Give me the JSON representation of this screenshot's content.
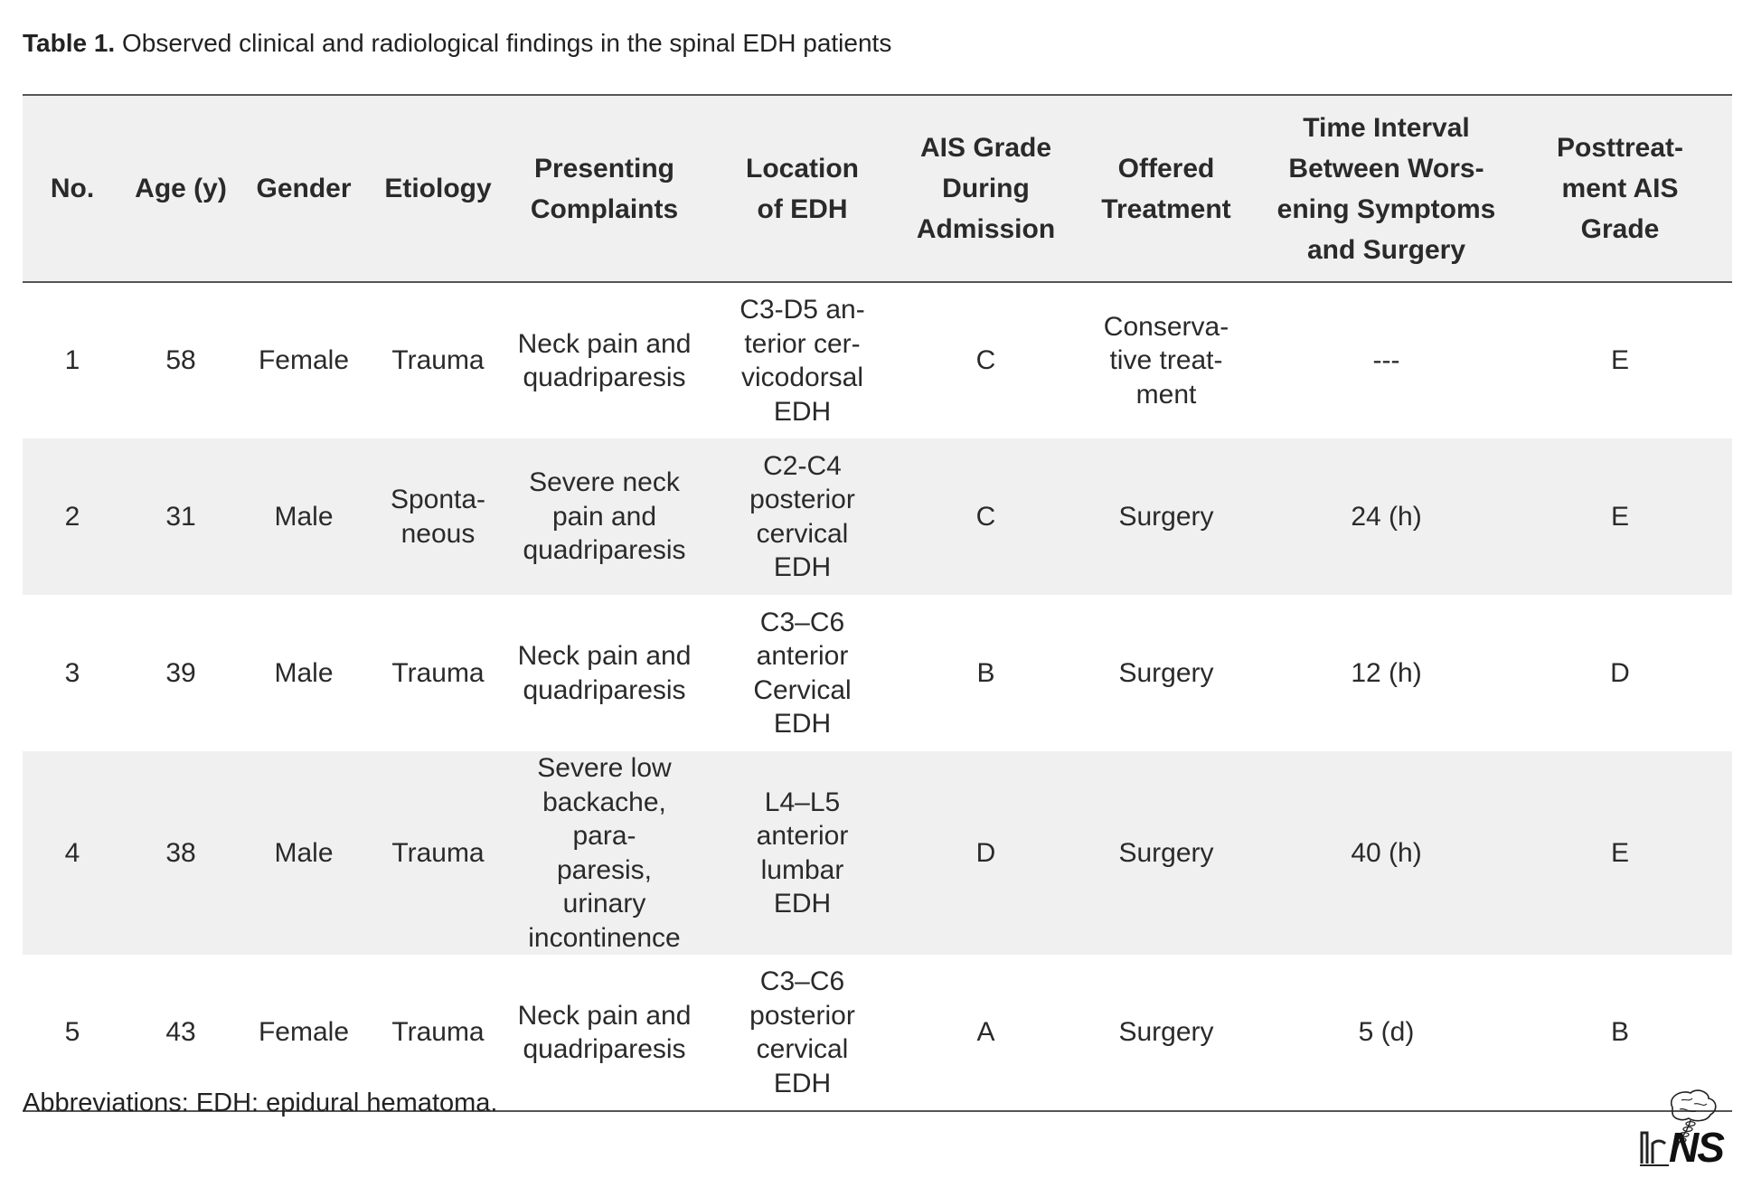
{
  "caption": {
    "label": "Table 1.",
    "text": " Observed clinical and radiological findings in the spinal EDH patients"
  },
  "table": {
    "headers": [
      "No.",
      "Age (y)",
      "Gender",
      "Etiology",
      "Presenting\nComplaints",
      "Location\nof EDH",
      "AIS Grade\nDuring\nAdmission",
      "Offered\nTreatment",
      "Time Interval\nBetween Wors-\nening Symptoms\nand Surgery",
      "Posttreat-\nment AIS\nGrade"
    ],
    "rows": [
      [
        "1",
        "58",
        "Female",
        "Trauma",
        "Neck pain and\nquadriparesis",
        "C3-D5 an-\nterior cer-\nvicodorsal\nEDH",
        "C",
        "Conserva-\ntive treat-\nment",
        "---",
        "E"
      ],
      [
        "2",
        "31",
        "Male",
        "Sponta-\nneous",
        "Severe neck\npain and\nquadriparesis",
        "C2-C4\nposterior\ncervical\nEDH",
        "C",
        "Surgery",
        "24 (h)",
        "E"
      ],
      [
        "3",
        "39",
        "Male",
        "Trauma",
        "Neck pain and\nquadriparesis",
        "C3–C6\nanterior\nCervical\nEDH",
        "B",
        "Surgery",
        "12 (h)",
        "D"
      ],
      [
        "4",
        "38",
        "Male",
        "Trauma",
        "Severe low\nbackache, para-\nparesis, urinary\nincontinence",
        "L4–L5\nanterior\nlumbar\nEDH",
        "D",
        "Surgery",
        "40 (h)",
        "E"
      ],
      [
        "5",
        "43",
        "Female",
        "Trauma",
        "Neck pain and\nquadriparesis",
        "C3–C6\nposterior\ncervical\nEDH",
        "A",
        "Surgery",
        "5 (d)",
        "B"
      ]
    ]
  },
  "footnote": "Abbreviations: EDH: epidural hematoma.",
  "logo": {
    "text": "NS",
    "icon": "brain-spine-logo-icon"
  },
  "colors": {
    "header_background": "#f0f0f0",
    "stripe_background": "#f0f0f0",
    "rule_color": "#555555",
    "text_color": "#2a2a2a"
  }
}
